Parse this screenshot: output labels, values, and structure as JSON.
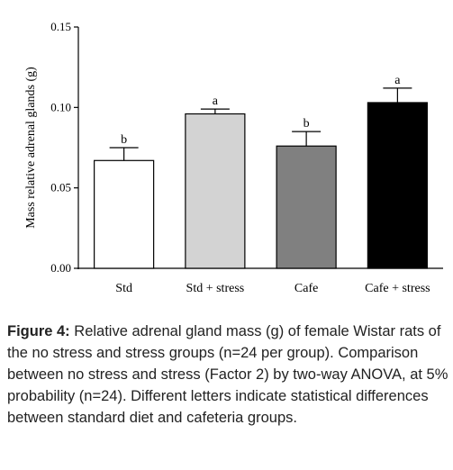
{
  "chart_data": {
    "type": "bar",
    "title": "",
    "xlabel": "",
    "ylabel": "Mass relative adrenal glands (g)",
    "ylim": [
      0,
      0.15
    ],
    "y_ticks": [
      "0.00",
      "0.05",
      "0.10",
      "0.15"
    ],
    "y_tick_values": [
      0,
      0.05,
      0.1,
      0.15
    ],
    "categories": [
      "Std",
      "Std + stress",
      "Cafe",
      "Cafe + stress"
    ],
    "values": [
      0.067,
      0.096,
      0.076,
      0.103
    ],
    "errors": [
      0.008,
      0.003,
      0.009,
      0.009
    ],
    "significance_letters": [
      "b",
      "a",
      "b",
      "a"
    ],
    "bar_colors": [
      "#ffffff",
      "#d3d3d3",
      "#808080",
      "#000000"
    ],
    "grid": false,
    "legend": "none"
  },
  "caption": {
    "label": "Figure 4:",
    "text": " Relative adrenal gland mass (g) of female Wistar rats of the no stress and stress groups (n=24 per group). Comparison between no stress and stress (Factor 2) by two-way ANOVA, at 5% probability (n=24). Different letters indicate statistical differences between standard diet and cafeteria groups."
  }
}
